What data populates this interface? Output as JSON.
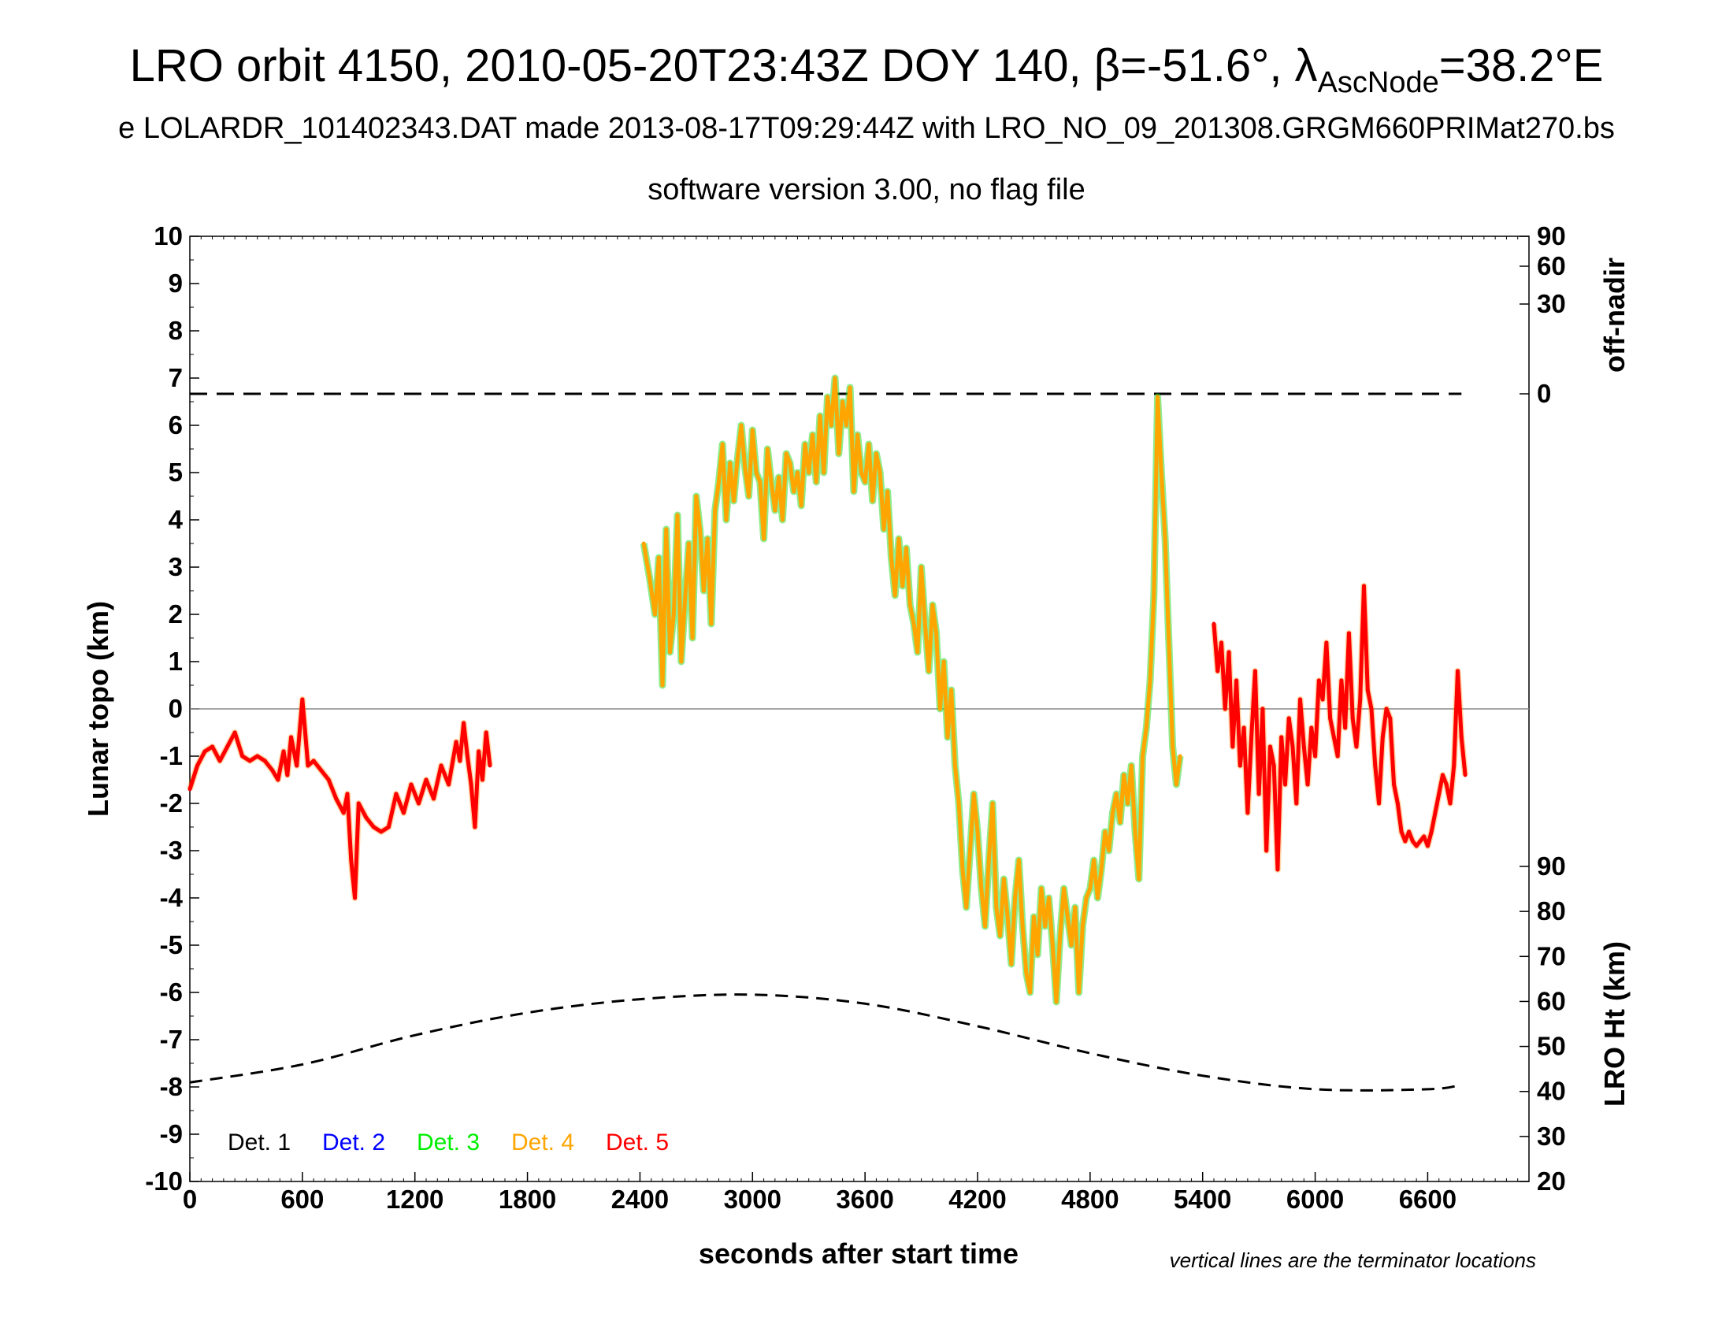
{
  "title": {
    "main": "LRO orbit 4150, 2010-05-20T23:43Z DOY 140, β=-51.6°, λ",
    "main_sub": "AscNode",
    "main_tail": "=38.2°E",
    "line2": "e LOLARDR_101402343.DAT made 2013-08-17T09:29:44Z with LRO_NO_09_201308.GRGM660PRIMat270.bs",
    "line3": "software version 3.00, no flag file"
  },
  "axes": {
    "xlabel": "seconds after start time",
    "ylabel_left": "Lunar topo (km)",
    "ylabel_right_top": "off-nadir",
    "ylabel_right_bottom": "LRO Ht (km)",
    "note": "vertical lines are the terminator locations",
    "x_ticks": [
      "0",
      "600",
      "1200",
      "1800",
      "2400",
      "3000",
      "3600",
      "4200",
      "4800",
      "5400",
      "6000",
      "6600"
    ],
    "y_left_ticks": [
      "10",
      "9",
      "8",
      "7",
      "6",
      "5",
      "4",
      "3",
      "2",
      "1",
      "0",
      "-1",
      "-2",
      "-3",
      "-4",
      "-5",
      "-6",
      "-7",
      "-8",
      "-9",
      "-10"
    ],
    "offnadir_ticks": [
      "90",
      "60",
      "30",
      "0"
    ],
    "ht_ticks": [
      "90",
      "80",
      "70",
      "60",
      "50",
      "40",
      "30",
      "20"
    ]
  },
  "legend": [
    {
      "label": "Det. 1",
      "color": "#000000"
    },
    {
      "label": "Det. 2",
      "color": "#0000ff"
    },
    {
      "label": "Det. 3",
      "color": "#00ee00"
    },
    {
      "label": "Det. 4",
      "color": "#ffa500"
    },
    {
      "label": "Det. 5",
      "color": "#ff0000"
    }
  ],
  "chart_data": {
    "type": "line",
    "xlim": [
      0,
      7140
    ],
    "ylim": [
      -10,
      10
    ],
    "ht_lim": [
      20,
      90
    ],
    "grid": false,
    "legend_position": "bottom-left",
    "series": [
      {
        "name": "Det. 5",
        "color": "#ff0000",
        "x": [
          0,
          40,
          80,
          120,
          160,
          200,
          240,
          280,
          320,
          360,
          400,
          440,
          470,
          500,
          520,
          540,
          570,
          600,
          630,
          660,
          700,
          740,
          780,
          820,
          840,
          860,
          880,
          900,
          940,
          980,
          1020,
          1060,
          1100,
          1140,
          1180,
          1220,
          1260,
          1300,
          1340,
          1380,
          1420,
          1440,
          1460,
          1480,
          1500,
          1520,
          1540,
          1560,
          1580,
          1600
        ],
        "y": [
          -1.7,
          -1.2,
          -0.9,
          -0.8,
          -1.1,
          -0.8,
          -0.5,
          -1.0,
          -1.1,
          -1.0,
          -1.1,
          -1.3,
          -1.5,
          -0.9,
          -1.4,
          -0.6,
          -1.2,
          0.2,
          -1.2,
          -1.1,
          -1.3,
          -1.5,
          -1.9,
          -2.2,
          -1.8,
          -3.2,
          -4.0,
          -2.0,
          -2.3,
          -2.5,
          -2.6,
          -2.5,
          -1.8,
          -2.2,
          -1.6,
          -2.0,
          -1.5,
          -1.9,
          -1.2,
          -1.6,
          -0.7,
          -1.1,
          -0.3,
          -1.0,
          -1.6,
          -2.5,
          -0.9,
          -1.5,
          -0.5,
          -1.2
        ]
      },
      {
        "name": "Det. 4",
        "color": "#ffa500",
        "x": [
          2420,
          2450,
          2480,
          2500,
          2520,
          2540,
          2560,
          2580,
          2600,
          2620,
          2640,
          2660,
          2680,
          2700,
          2720,
          2740,
          2760,
          2780,
          2800,
          2820,
          2840,
          2860,
          2880,
          2900,
          2920,
          2940,
          2960,
          2980,
          3000,
          3020,
          3040,
          3060,
          3080,
          3100,
          3120,
          3140,
          3160,
          3180,
          3200,
          3220,
          3240,
          3260,
          3280,
          3300,
          3320,
          3340,
          3360,
          3380,
          3400,
          3420,
          3440,
          3460,
          3480,
          3500,
          3520,
          3540,
          3560,
          3580,
          3600,
          3620,
          3640,
          3660,
          3680,
          3700,
          3720,
          3740,
          3760,
          3780,
          3800,
          3820,
          3840,
          3860,
          3880,
          3900,
          3920,
          3940,
          3960,
          3980,
          4000,
          4020,
          4040,
          4060,
          4080,
          4100,
          4120,
          4140,
          4160,
          4180,
          4200,
          4220,
          4240,
          4260,
          4280,
          4300,
          4320,
          4340,
          4360,
          4380,
          4400,
          4420,
          4440,
          4460,
          4480,
          4500,
          4520,
          4540,
          4560,
          4580,
          4600,
          4620,
          4640,
          4660,
          4680,
          4700,
          4720,
          4740,
          4760,
          4780,
          4800,
          4820,
          4840,
          4860,
          4880,
          4900,
          4920,
          4940,
          4960,
          4980,
          5000,
          5020,
          5040,
          5060,
          5080,
          5100,
          5120,
          5140,
          5160,
          5180,
          5200,
          5220,
          5240,
          5260,
          5280
        ],
        "y": [
          3.5,
          2.8,
          2.0,
          3.2,
          0.5,
          3.8,
          1.2,
          2.0,
          4.1,
          1.0,
          2.3,
          3.5,
          1.5,
          4.5,
          3.8,
          2.5,
          3.6,
          1.8,
          4.2,
          4.8,
          5.6,
          4.0,
          5.2,
          4.4,
          5.3,
          6.0,
          5.1,
          4.5,
          5.9,
          5.0,
          4.8,
          3.6,
          5.5,
          4.8,
          4.2,
          4.9,
          4.0,
          5.4,
          5.2,
          4.6,
          5.0,
          4.3,
          5.6,
          5.0,
          5.8,
          4.8,
          6.2,
          5.0,
          6.6,
          6.0,
          7.0,
          5.4,
          6.5,
          6.0,
          6.8,
          4.6,
          5.8,
          5.0,
          4.8,
          5.6,
          4.4,
          5.4,
          5.0,
          3.8,
          4.6,
          3.2,
          2.4,
          3.6,
          2.6,
          3.4,
          2.2,
          1.8,
          1.2,
          3.0,
          1.8,
          0.8,
          2.2,
          1.6,
          0.0,
          1.0,
          -0.6,
          0.4,
          -1.2,
          -2.0,
          -3.4,
          -4.2,
          -3.0,
          -1.8,
          -2.6,
          -3.8,
          -4.6,
          -3.2,
          -2.0,
          -4.2,
          -4.8,
          -3.6,
          -4.4,
          -5.4,
          -4.0,
          -3.2,
          -4.6,
          -5.6,
          -6.0,
          -4.4,
          -5.2,
          -3.8,
          -4.6,
          -4.0,
          -5.0,
          -6.2,
          -4.8,
          -3.8,
          -4.4,
          -5.0,
          -4.2,
          -6.0,
          -4.6,
          -4.0,
          -3.8,
          -3.2,
          -4.0,
          -3.4,
          -2.6,
          -3.0,
          -2.2,
          -1.8,
          -2.4,
          -1.4,
          -2.0,
          -1.2,
          -2.6,
          -3.6,
          -1.0,
          -0.4,
          0.6,
          2.4,
          6.6,
          5.0,
          3.6,
          1.4,
          -0.8,
          -1.6,
          -1.0
        ]
      },
      {
        "name": "Det. 5",
        "color": "#ff0000",
        "x": [
          5460,
          5480,
          5500,
          5520,
          5540,
          5560,
          5580,
          5600,
          5620,
          5640,
          5660,
          5680,
          5700,
          5720,
          5740,
          5760,
          5780,
          5800,
          5820,
          5840,
          5860,
          5880,
          5900,
          5920,
          5940,
          5960,
          5980,
          6000,
          6020,
          6040,
          6060,
          6080,
          6100,
          6120,
          6140,
          6160,
          6180,
          6200,
          6220,
          6240,
          6260,
          6280,
          6300,
          6320,
          6340,
          6360,
          6380,
          6400,
          6420,
          6440,
          6460,
          6480,
          6500,
          6520,
          6540,
          6560,
          6580,
          6600,
          6620,
          6640,
          6660,
          6680,
          6700,
          6720,
          6740,
          6760,
          6780,
          6800
        ],
        "y": [
          1.8,
          0.8,
          1.4,
          0.0,
          1.2,
          -0.8,
          0.6,
          -1.2,
          -0.4,
          -2.2,
          -0.6,
          0.8,
          -1.8,
          0.0,
          -3.0,
          -0.8,
          -1.2,
          -3.4,
          -0.6,
          -1.6,
          -0.2,
          -0.8,
          -2.0,
          0.2,
          -0.8,
          -1.6,
          -0.4,
          -1.0,
          0.6,
          0.2,
          1.4,
          -0.2,
          -0.6,
          -1.0,
          0.6,
          -0.4,
          1.6,
          -0.2,
          -0.8,
          0.2,
          2.6,
          0.4,
          0.0,
          -1.2,
          -2.0,
          -0.6,
          0.0,
          -0.2,
          -1.6,
          -2.0,
          -2.6,
          -2.8,
          -2.6,
          -2.8,
          -2.9,
          -2.8,
          -2.7,
          -2.9,
          -2.6,
          -2.2,
          -1.8,
          -1.4,
          -1.6,
          -2.0,
          -1.2,
          0.8,
          -0.6,
          -1.4
        ]
      }
    ],
    "lro_height_km": {
      "x": [
        0,
        600,
        1200,
        1800,
        2400,
        3000,
        3600,
        4200,
        4800,
        5400,
        6000,
        6600,
        6780
      ],
      "y": [
        42,
        46,
        52.5,
        57.5,
        60.5,
        61.5,
        59.5,
        54.5,
        48.5,
        43.5,
        40.5,
        40.5,
        41.5
      ]
    },
    "offnadir_deg": {
      "x": [
        0,
        6780
      ],
      "y": [
        0,
        0
      ]
    }
  }
}
